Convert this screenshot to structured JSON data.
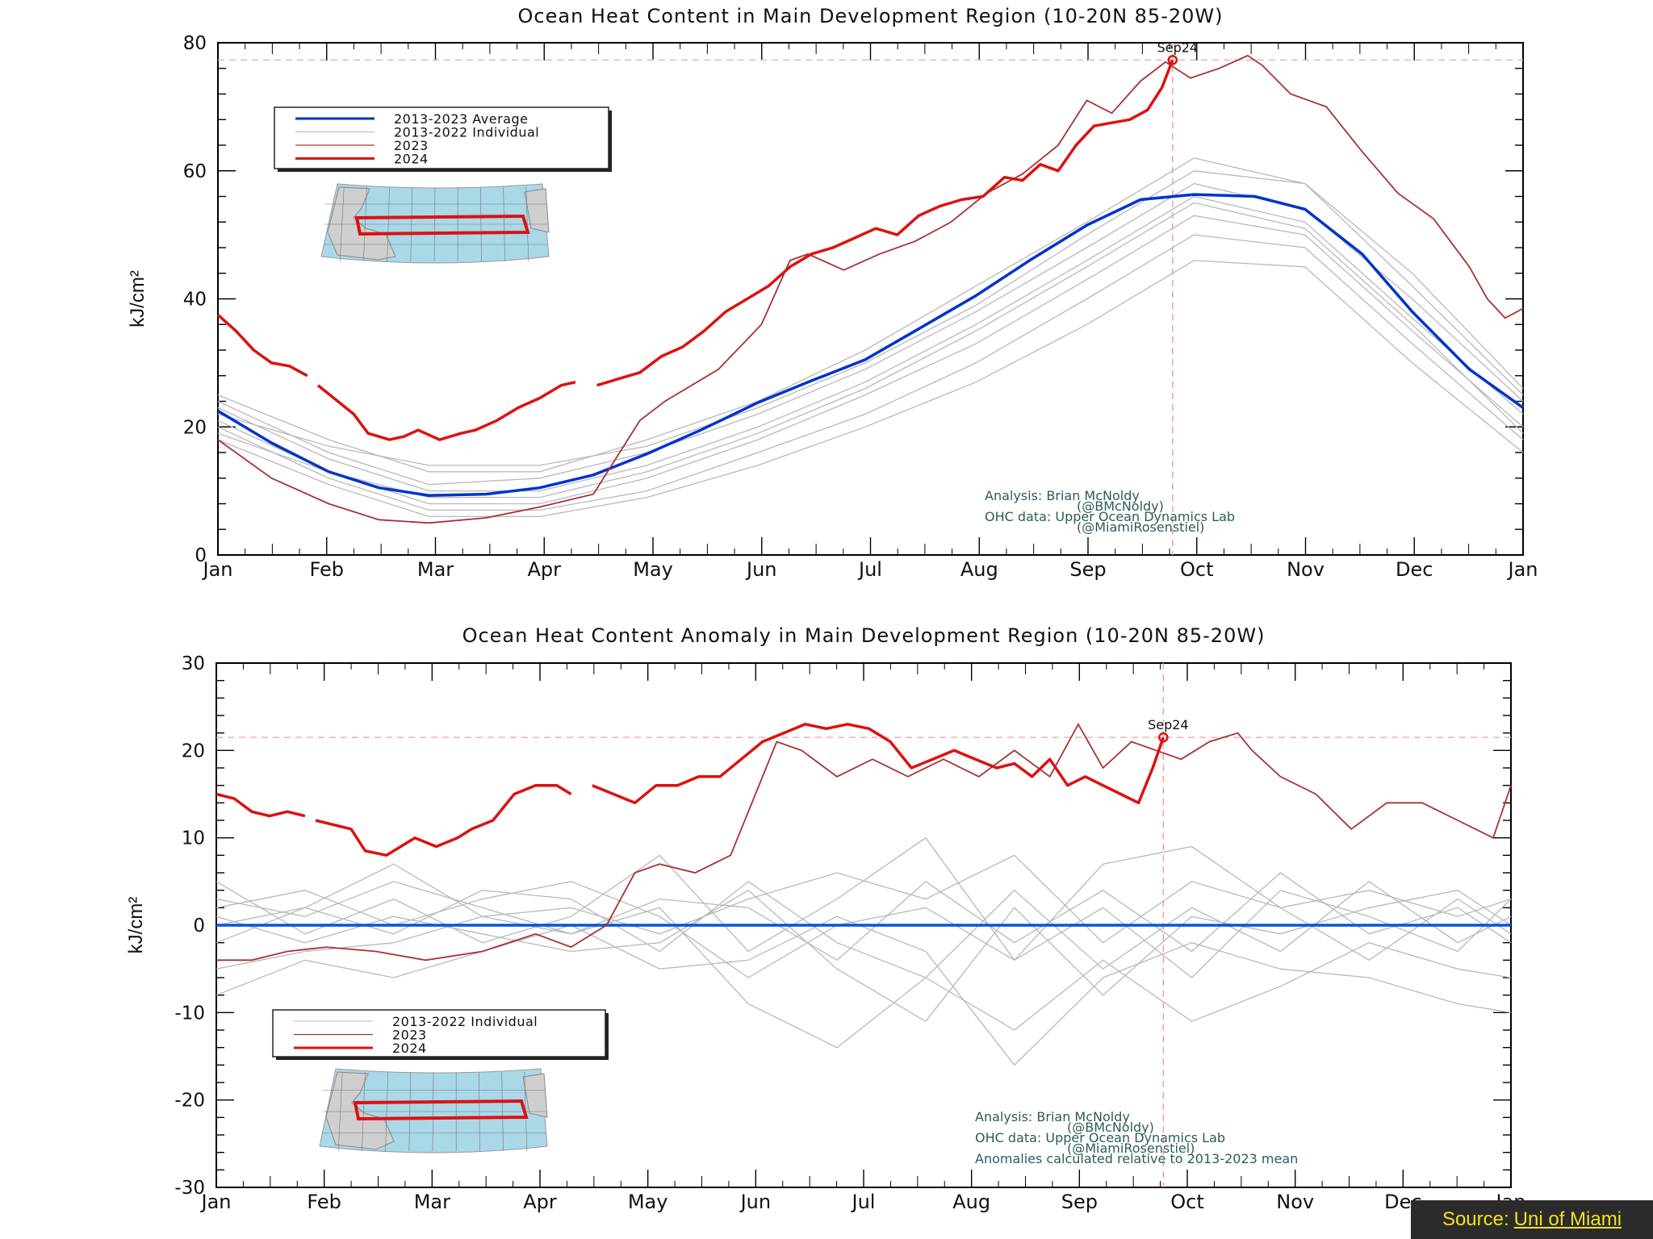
{
  "footer": {
    "source_prefix": "Source:",
    "source_link": "Uni of Miami"
  },
  "chart_data": [
    {
      "type": "line",
      "title": "Ocean Heat Content in Main Development Region (10-20N 85-20W)",
      "ylabel": "kJ/cm²",
      "ylim": [
        0,
        80
      ],
      "yticks": [
        0,
        20,
        40,
        60,
        80
      ],
      "x_tick_labels": [
        "Jan",
        "Feb",
        "Mar",
        "Apr",
        "May",
        "Jun",
        "Jul",
        "Aug",
        "Sep",
        "Oct",
        "Nov",
        "Dec",
        "Jan"
      ],
      "xlim": [
        0,
        365
      ],
      "marker": {
        "label": "Sep24",
        "x": 267,
        "y": 77.3
      },
      "legend": {
        "placement": "top-left",
        "entries": [
          "2013-2023 Average",
          "2013-2022 Individual",
          "2023",
          "2024"
        ]
      },
      "annotation": [
        "Analysis: Brian McNoldy",
        "(@BMcNoldy)",
        "OHC data: Upper Ocean Dynamics Lab",
        "(@MiamiRosenstiel)"
      ],
      "colors": {
        "average": "#0033cc",
        "individual": "#b8b8b8",
        "y2023": "#a83232",
        "y2024": "#dd1111"
      },
      "series": [
        {
          "name": "2013-2023 Average",
          "x": [
            0,
            15,
            31,
            45,
            59,
            75,
            90,
            105,
            120,
            135,
            151,
            165,
            181,
            195,
            212,
            227,
            243,
            258,
            273,
            290,
            304,
            320,
            334,
            350,
            365
          ],
          "y": [
            22.5,
            17.5,
            13.0,
            10.5,
            9.3,
            9.5,
            10.5,
            12.5,
            15.8,
            19.5,
            23.8,
            27.0,
            30.5,
            35.0,
            40.5,
            46.0,
            51.5,
            55.5,
            56.3,
            56.0,
            54.0,
            47.0,
            38.0,
            29.0,
            23.0
          ]
        },
        {
          "name": "2023",
          "x": [
            0,
            15,
            31,
            45,
            59,
            75,
            90,
            105,
            118,
            125,
            140,
            152,
            160,
            165,
            175,
            185,
            195,
            205,
            215,
            225,
            235,
            243,
            250,
            258,
            265,
            272,
            280,
            288,
            292,
            300,
            310,
            320,
            330,
            340,
            350,
            355,
            360,
            365
          ],
          "y": [
            18.0,
            12.0,
            8.0,
            5.5,
            5.0,
            5.8,
            7.5,
            9.5,
            21.0,
            24.0,
            29.0,
            36.0,
            46.0,
            47.0,
            44.5,
            47.0,
            49.0,
            52.0,
            56.5,
            59.5,
            64.0,
            71.0,
            69.0,
            74.0,
            77.0,
            74.5,
            76.0,
            78.0,
            76.5,
            72.0,
            70.0,
            63.0,
            56.5,
            52.5,
            45.0,
            40.0,
            37.0,
            38.5
          ]
        },
        {
          "name": "2024",
          "x": [
            0,
            5,
            10,
            15,
            20,
            25,
            28,
            38,
            42,
            48,
            52,
            56,
            62,
            68,
            72,
            78,
            84,
            90,
            96,
            100,
            106,
            112,
            118,
            124,
            130,
            136,
            142,
            148,
            154,
            160,
            166,
            172,
            178,
            184,
            190,
            196,
            202,
            208,
            214,
            220,
            225,
            230,
            235,
            240,
            245,
            250,
            255,
            260,
            264,
            267
          ],
          "y": [
            37.5,
            35.0,
            32.0,
            30.0,
            29.5,
            28.0,
            26.5,
            22.0,
            19.0,
            18.0,
            18.5,
            19.5,
            18.0,
            19.0,
            19.5,
            21.0,
            23.0,
            24.5,
            26.5,
            27.0,
            26.5,
            27.5,
            28.5,
            31.0,
            32.5,
            35.0,
            38.0,
            40.0,
            42.0,
            45.0,
            47.0,
            48.0,
            49.5,
            51.0,
            50.0,
            53.0,
            54.5,
            55.5,
            56.0,
            59.0,
            58.5,
            61.0,
            60.0,
            64.0,
            67.0,
            67.5,
            68.0,
            69.5,
            73.0,
            77.3
          ]
        },
        {
          "name": "2013-2022 Individual",
          "x": [
            0,
            31,
            59,
            90,
            120,
            151,
            181,
            212,
            243,
            273,
            304,
            334,
            365
          ],
          "multi_y": [
            [
              25,
              18,
              13,
              13,
              18,
              24,
              32,
              42,
              52,
              62,
              58,
              44,
              26
            ],
            [
              24,
              16,
              11,
              12,
              16,
              22,
              29,
              38,
              48,
              58,
              54,
              40,
              24
            ],
            [
              23,
              15,
              10,
              10,
              14,
              20,
              27,
              36,
              46,
              56,
              52,
              37,
              22
            ],
            [
              21,
              13,
              8,
              8,
              12,
              18,
              25,
              33,
              43,
              53,
              50,
              35,
              20
            ],
            [
              20,
              12,
              7,
              7,
              10,
              16,
              22,
              30,
              40,
              50,
              48,
              33,
              18
            ],
            [
              18,
              11,
              6,
              6,
              9,
              14,
              20,
              27,
              36,
              46,
              45,
              30,
              16
            ],
            [
              22,
              17,
              14,
              14,
              17,
              23,
              30,
              39,
              50,
              60,
              58,
              42,
              25
            ],
            [
              19,
              13,
              9,
              9,
              13,
              19,
              26,
              35,
              45,
              55,
              51,
              36,
              19
            ]
          ]
        }
      ]
    },
    {
      "type": "line",
      "title": "Ocean Heat Content Anomaly in Main Development Region (10-20N 85-20W)",
      "ylabel": "kJ/cm²",
      "ylim": [
        -30,
        30
      ],
      "yticks": [
        -30,
        -20,
        -10,
        0,
        10,
        20,
        30
      ],
      "x_tick_labels": [
        "Jan",
        "Feb",
        "Mar",
        "Apr",
        "May",
        "Jun",
        "Jul",
        "Aug",
        "Sep",
        "Oct",
        "Nov",
        "Dec",
        "Jan"
      ],
      "xlim": [
        0,
        365
      ],
      "marker": {
        "label": "Sep24",
        "x": 267,
        "y": 21.5
      },
      "legend": {
        "placement": "bottom-left",
        "entries": [
          "2013-2022 Individual",
          "2023",
          "2024"
        ]
      },
      "annotation": [
        "Analysis: Brian McNoldy",
        "(@BMcNoldy)",
        "OHC data: Upper Ocean Dynamics Lab",
        "(@MiamiRosenstiel)",
        "Anomalies calculated relative to 2013-2023 mean"
      ],
      "colors": {
        "average": "#0055dd",
        "individual": "#b8b8b8",
        "y2023": "#a83232",
        "y2024": "#dd1111"
      },
      "series": [
        {
          "name": "2013-2023 Average",
          "x": [
            0,
            365
          ],
          "y": [
            0,
            0
          ]
        },
        {
          "name": "2023",
          "x": [
            0,
            10,
            20,
            31,
            45,
            59,
            75,
            90,
            100,
            110,
            118,
            125,
            135,
            145,
            152,
            158,
            165,
            175,
            185,
            195,
            205,
            215,
            225,
            235,
            243,
            250,
            258,
            265,
            272,
            280,
            288,
            292,
            300,
            310,
            320,
            330,
            340,
            350,
            360,
            365
          ],
          "y": [
            -4,
            -4,
            -3,
            -2.5,
            -3,
            -4,
            -3,
            -1,
            -2.5,
            0,
            6,
            7,
            6,
            8,
            15,
            21,
            20,
            17,
            19,
            17,
            19,
            17,
            20,
            17,
            23,
            18,
            21,
            20,
            19,
            21,
            22,
            20,
            17,
            15,
            11,
            14,
            14,
            12,
            10,
            16
          ]
        },
        {
          "name": "2024",
          "x": [
            0,
            5,
            10,
            15,
            20,
            25,
            28,
            38,
            42,
            48,
            52,
            56,
            62,
            68,
            72,
            78,
            84,
            90,
            96,
            100,
            106,
            112,
            118,
            124,
            130,
            136,
            142,
            148,
            154,
            160,
            166,
            172,
            178,
            184,
            190,
            196,
            202,
            208,
            214,
            220,
            225,
            230,
            235,
            240,
            245,
            250,
            255,
            260,
            264,
            267
          ],
          "y": [
            15,
            14.5,
            13,
            12.5,
            13,
            12.5,
            12,
            11,
            8.5,
            8,
            9,
            10,
            9,
            10,
            11,
            12,
            15,
            16,
            16,
            15,
            16,
            15,
            14,
            16,
            16,
            17,
            17,
            19,
            21,
            22,
            23,
            22.5,
            23,
            22.5,
            21,
            18,
            19,
            20,
            19,
            18,
            18.5,
            17,
            19,
            16,
            17,
            16,
            15,
            14,
            18,
            21.5
          ]
        },
        {
          "name": "2013-2022 Individual",
          "x": [
            0,
            25,
            50,
            75,
            100,
            125,
            150,
            175,
            200,
            225,
            250,
            275,
            300,
            325,
            350,
            365
          ],
          "multi_y": [
            [
              3,
              1,
              5,
              2,
              -1,
              3,
              2,
              -4,
              5,
              -2,
              4,
              -3,
              6,
              -1,
              2,
              -2
            ],
            [
              -2,
              2,
              -1,
              4,
              3,
              -3,
              5,
              -2,
              -6,
              4,
              -5,
              2,
              -3,
              5,
              -2,
              1
            ],
            [
              5,
              -1,
              3,
              -2,
              1,
              8,
              -3,
              3,
              10,
              -4,
              2,
              -6,
              4,
              1,
              -3,
              3
            ],
            [
              -5,
              -3,
              -2,
              1,
              -1,
              2,
              -9,
              -14,
              -6,
              -12,
              -4,
              -11,
              -7,
              -2,
              -5,
              -6
            ],
            [
              0,
              2,
              7,
              1,
              2,
              -1,
              3,
              6,
              3,
              8,
              -2,
              5,
              2,
              -4,
              3,
              -1
            ],
            [
              -8,
              -4,
              -6,
              -3,
              0,
              -5,
              -4,
              1,
              -3,
              -16,
              -6,
              -2,
              -5,
              -6,
              -9,
              -10
            ],
            [
              2,
              4,
              0,
              3,
              5,
              1,
              -6,
              0,
              2,
              -4,
              7,
              9,
              2,
              4,
              1,
              3
            ],
            [
              1,
              -2,
              1,
              -1,
              -3,
              -2,
              4,
              -5,
              -11,
              2,
              -8,
              1,
              -1,
              2,
              4,
              0
            ]
          ]
        }
      ]
    }
  ]
}
